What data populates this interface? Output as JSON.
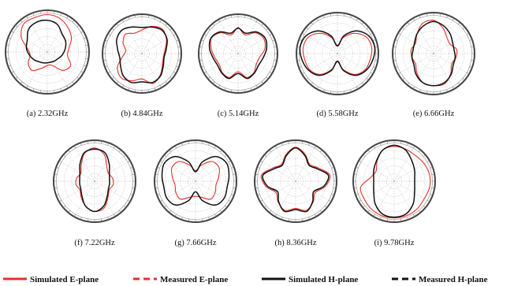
{
  "chart_data": [
    {
      "type": "polar",
      "caption": "(a) 2.32GHz",
      "series": [
        {
          "r": [
            0.97,
            0.93,
            0.83,
            0.72,
            0.57,
            0.53,
            0.7,
            0.62,
            0.37,
            0.35,
            0.45,
            0.62,
            0.57,
            0.45,
            0.52,
            0.78,
            0.95,
            0.95
          ]
        },
        {
          "r": [
            0.82,
            0.76,
            0.6,
            0.55,
            0.47,
            0.4,
            0.33,
            0.3,
            0.28,
            0.28,
            0.3,
            0.33,
            0.4,
            0.47,
            0.55,
            0.6,
            0.76,
            0.82
          ]
        }
      ]
    },
    {
      "type": "polar",
      "caption": "(b) 4.84GHz",
      "series": [
        {
          "r": [
            0.65,
            0.8,
            0.88,
            0.78,
            0.65,
            0.6,
            0.65,
            0.78,
            0.88,
            0.7,
            0.8,
            0.88,
            0.78,
            0.55,
            0.45,
            0.6,
            0.7,
            0.6
          ]
        },
        {
          "r": [
            0.72,
            0.78,
            0.85,
            0.8,
            0.68,
            0.62,
            0.68,
            0.8,
            0.85,
            0.78,
            0.85,
            0.8,
            0.68,
            0.62,
            0.68,
            0.8,
            0.85,
            0.78
          ]
        }
      ]
    },
    {
      "type": "polar",
      "caption": "(c) 5.14GHz",
      "series": [
        {
          "r": [
            0.72,
            0.55,
            0.75,
            0.82,
            0.75,
            0.6,
            0.58,
            0.68,
            0.7,
            0.5,
            0.7,
            0.68,
            0.6,
            0.65,
            0.75,
            0.85,
            0.75,
            0.55
          ]
        },
        {
          "r": [
            0.7,
            0.6,
            0.78,
            0.86,
            0.8,
            0.7,
            0.65,
            0.7,
            0.73,
            0.55,
            0.73,
            0.7,
            0.65,
            0.7,
            0.8,
            0.86,
            0.78,
            0.6
          ]
        }
      ]
    },
    {
      "type": "polar",
      "caption": "(d) 5.58GHz",
      "series": [
        {
          "r": [
            0.22,
            0.45,
            0.7,
            0.88,
            0.92,
            0.88,
            0.85,
            0.72,
            0.45,
            0.22,
            0.45,
            0.72,
            0.85,
            0.88,
            0.92,
            0.88,
            0.7,
            0.45
          ]
        },
        {
          "r": [
            0.2,
            0.5,
            0.78,
            0.95,
            1.0,
            0.95,
            0.88,
            0.75,
            0.48,
            0.2,
            0.48,
            0.75,
            0.88,
            0.95,
            1.0,
            0.95,
            0.78,
            0.5
          ]
        }
      ]
    },
    {
      "type": "polar",
      "caption": "(e) 6.66GHz",
      "series": [
        {
          "r": [
            0.88,
            0.72,
            0.55,
            0.5,
            0.62,
            0.6,
            0.55,
            0.7,
            0.85,
            0.85,
            0.82,
            0.68,
            0.55,
            0.58,
            0.6,
            0.55,
            0.68,
            0.85
          ]
        },
        {
          "r": [
            0.85,
            0.78,
            0.68,
            0.58,
            0.55,
            0.58,
            0.6,
            0.72,
            0.82,
            0.85,
            0.82,
            0.72,
            0.6,
            0.58,
            0.55,
            0.58,
            0.68,
            0.78
          ]
        }
      ]
    },
    {
      "type": "polar",
      "caption": "(f) 7.22GHz",
      "series": [
        {
          "r": [
            0.88,
            0.75,
            0.5,
            0.42,
            0.48,
            0.5,
            0.45,
            0.55,
            0.75,
            0.8,
            0.7,
            0.55,
            0.45,
            0.5,
            0.48,
            0.42,
            0.55,
            0.78
          ]
        },
        {
          "r": [
            0.85,
            0.8,
            0.6,
            0.45,
            0.4,
            0.4,
            0.42,
            0.52,
            0.7,
            0.8,
            0.7,
            0.52,
            0.42,
            0.4,
            0.4,
            0.45,
            0.6,
            0.8
          ]
        }
      ]
    },
    {
      "type": "polar",
      "caption": "(g) 7.66GHz",
      "series": [
        {
          "r": [
            0.28,
            0.45,
            0.68,
            0.72,
            0.62,
            0.55,
            0.6,
            0.62,
            0.45,
            0.4,
            0.45,
            0.62,
            0.6,
            0.55,
            0.62,
            0.72,
            0.68,
            0.45
          ]
        },
        {
          "r": [
            0.25,
            0.55,
            0.85,
            0.95,
            0.9,
            0.85,
            0.88,
            0.82,
            0.55,
            0.28,
            0.55,
            0.82,
            0.88,
            0.85,
            0.9,
            0.95,
            0.85,
            0.55
          ]
        }
      ]
    },
    {
      "type": "polar",
      "caption": "(h) 8.36GHz",
      "series": [
        {
          "r": [
            0.9,
            0.75,
            0.58,
            0.7,
            0.92,
            0.8,
            0.6,
            0.72,
            0.82,
            0.72,
            0.82,
            0.72,
            0.6,
            0.8,
            0.92,
            0.7,
            0.58,
            0.75
          ]
        },
        {
          "r": [
            0.88,
            0.72,
            0.55,
            0.66,
            0.88,
            0.76,
            0.55,
            0.7,
            0.85,
            0.75,
            0.85,
            0.7,
            0.55,
            0.76,
            0.88,
            0.66,
            0.55,
            0.72
          ]
        }
      ]
    },
    {
      "type": "polar",
      "caption": "(i) 9.78GHz",
      "series": [
        {
          "r": [
            0.92,
            0.9,
            0.88,
            0.92,
            0.95,
            0.95,
            0.92,
            0.95,
            0.97,
            0.97,
            0.97,
            0.95,
            0.92,
            0.9,
            0.62,
            0.55,
            0.7,
            0.88
          ]
        },
        {
          "r": [
            0.95,
            0.88,
            0.72,
            0.62,
            0.55,
            0.55,
            0.62,
            0.78,
            0.92,
            0.95,
            0.92,
            0.78,
            0.62,
            0.55,
            0.55,
            0.62,
            0.72,
            0.88
          ]
        }
      ]
    }
  ],
  "legend": [
    {
      "label": "Simulated E-plane",
      "color": "#e8302a",
      "dash": "solid"
    },
    {
      "label": "Measured E-plane",
      "color": "#e8302a",
      "dash": "dashed"
    },
    {
      "label": "Simulated H-plane",
      "color": "#111111",
      "dash": "solid"
    },
    {
      "label": "Measured H-plane",
      "color": "#111111",
      "dash": "dashed"
    }
  ],
  "colors": {
    "e_plane": "#e8302a",
    "h_plane": "#111111",
    "grid": "#b5b5b5"
  }
}
